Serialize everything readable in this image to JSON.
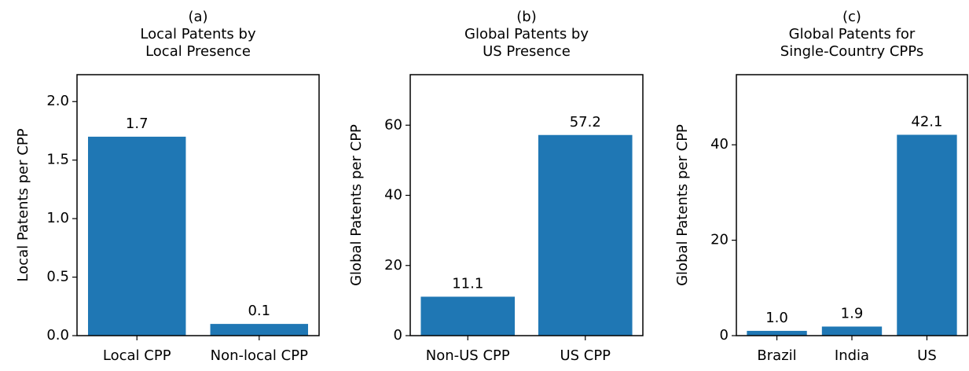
{
  "chart_data": [
    {
      "type": "bar",
      "title": [
        "(a)",
        "Local Patents by",
        "Local Presence"
      ],
      "y_label": "Local Patents per CPP",
      "categories": [
        "Local CPP",
        "Non-local CPP"
      ],
      "values": [
        1.7,
        0.1
      ],
      "value_labels": [
        "1.7",
        "0.1"
      ],
      "color": "#1f77b4",
      "ylim": [
        0,
        2.23
      ],
      "yticks": [
        {
          "value": 0,
          "label": "0.0"
        },
        {
          "value": 0.5,
          "label": "0.5"
        },
        {
          "value": 1,
          "label": "1.0"
        },
        {
          "value": 1.5,
          "label": "1.5"
        },
        {
          "value": 2,
          "label": "2.0"
        }
      ]
    },
    {
      "type": "bar",
      "title": [
        "(b)",
        "Global Patents by",
        "US Presence"
      ],
      "y_label": "Global Patents per CPP",
      "categories": [
        "Non-US CPP",
        "US CPP"
      ],
      "values": [
        11.1,
        57.2
      ],
      "value_labels": [
        "11.1",
        "57.2"
      ],
      "color": "#1f77b4",
      "ylim": [
        0,
        74.4
      ],
      "yticks": [
        0,
        20,
        40,
        60
      ]
    },
    {
      "type": "bar",
      "title": [
        "(c)",
        "Global Patents for",
        "Single-Country CPPs"
      ],
      "y_label": "Global Patents per CPP",
      "categories": [
        "Brazil",
        "India",
        "US"
      ],
      "values": [
        1.0,
        1.9,
        42.1
      ],
      "value_labels": [
        "1.0",
        "1.9",
        "42.1"
      ],
      "color": "#1f77b4",
      "ylim": [
        0,
        54.7
      ],
      "yticks": [
        0,
        20,
        40
      ]
    }
  ]
}
